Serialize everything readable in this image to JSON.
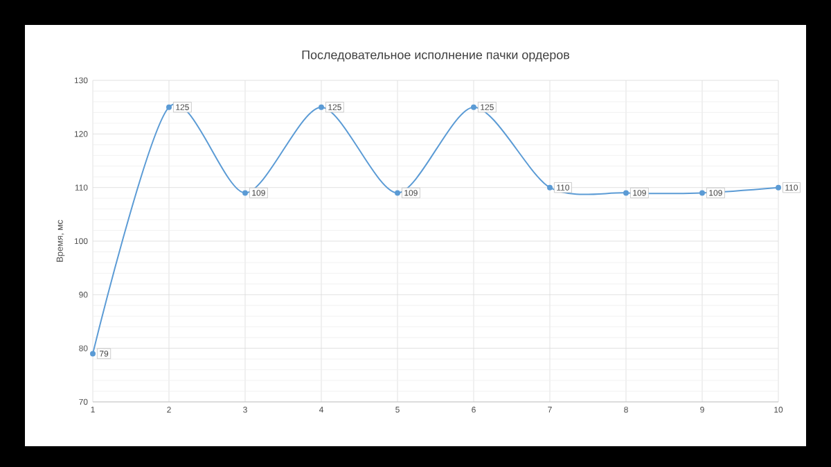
{
  "chart_data": {
    "type": "line",
    "title": "Последовательное исполнение пачки ордеров",
    "ylabel": "Время, мс",
    "x": [
      1,
      2,
      3,
      4,
      5,
      6,
      7,
      8,
      9,
      10
    ],
    "series": [
      {
        "color": "#5b9bd5",
        "values": [
          79,
          125,
          109,
          125,
          109,
          125,
          110,
          109,
          109,
          110
        ]
      }
    ],
    "xlim": [
      1,
      10
    ],
    "xticks": [
      1,
      2,
      3,
      4,
      5,
      6,
      7,
      8,
      9,
      10
    ],
    "ylim": [
      70,
      130
    ],
    "yticks": [
      70,
      80,
      90,
      100,
      110,
      120,
      130
    ],
    "grid": true,
    "marker": "circle",
    "line_style": "solid",
    "data_labels": true
  }
}
